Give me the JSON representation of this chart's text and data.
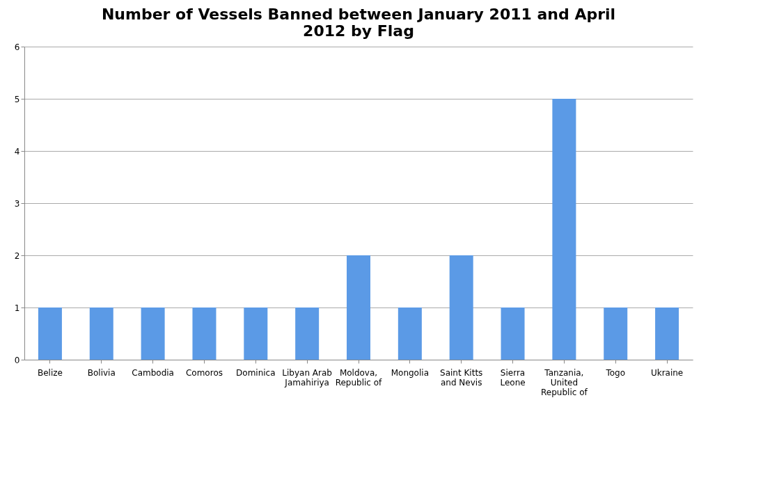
{
  "chart_data": {
    "type": "bar",
    "title": "Number of Vessels Banned between January 2011 and April 2012 by Flag",
    "categories": [
      "Belize",
      "Bolivia",
      "Cambodia",
      "Comoros",
      "Dominica",
      "Libyan Arab Jamahiriya",
      "Moldova, Republic of",
      "Mongolia",
      "Saint Kitts and Nevis",
      "Sierra Leone",
      "Tanzania, United Republic of",
      "Togo",
      "Ukraine"
    ],
    "values": [
      1,
      1,
      1,
      1,
      1,
      1,
      2,
      1,
      2,
      1,
      5,
      1,
      1
    ],
    "color": "#5b9ae6",
    "ylim": [
      0,
      6
    ],
    "yticks": [
      0,
      1,
      2,
      3,
      4,
      5,
      6
    ],
    "grid": "y"
  }
}
